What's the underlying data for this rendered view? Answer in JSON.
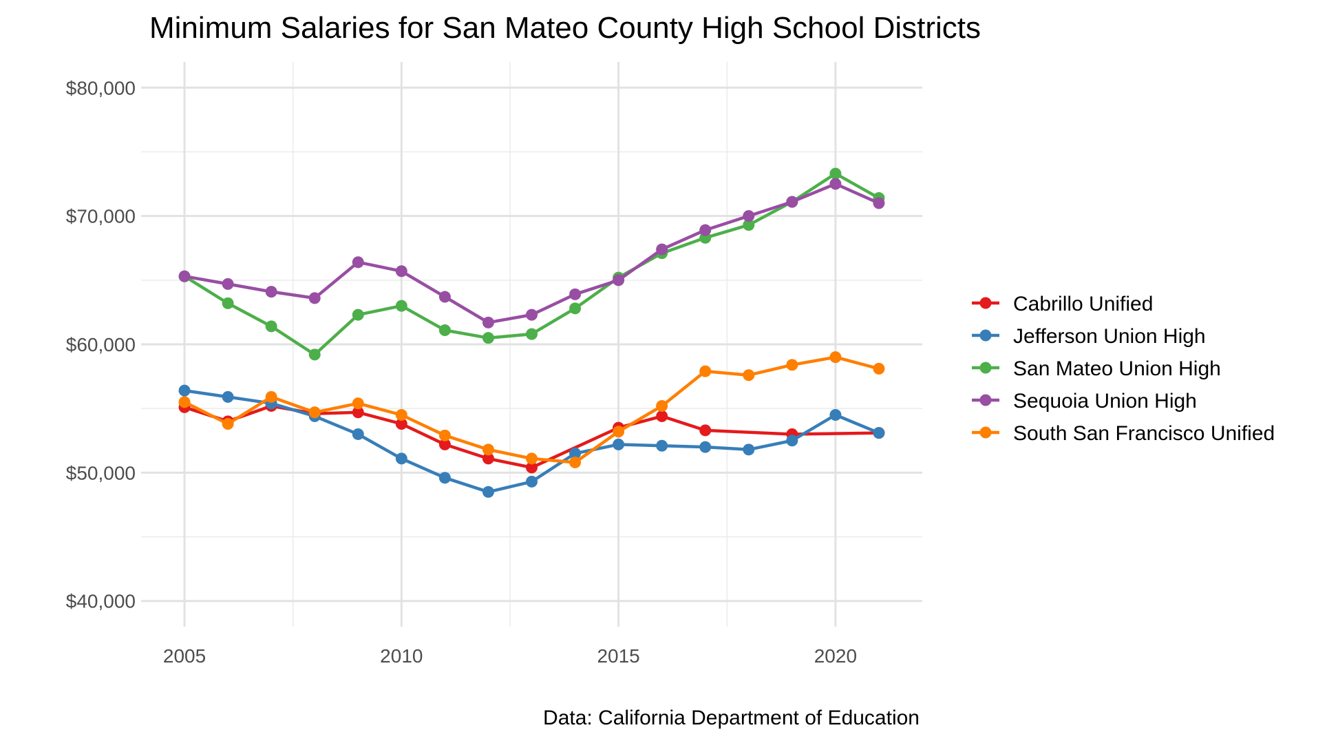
{
  "chart_data": {
    "type": "line",
    "title": "Minimum Salaries for San Mateo County High School Districts",
    "caption": "Data: California Department of Education",
    "xlabel": "",
    "ylabel": "",
    "xlim": [
      2004,
      2022
    ],
    "ylim": [
      38000,
      82000
    ],
    "x_ticks": [
      2005,
      2010,
      2015,
      2020
    ],
    "x_tick_labels": [
      "2005",
      "2010",
      "2015",
      "2020"
    ],
    "y_ticks": [
      40000,
      50000,
      60000,
      70000,
      80000
    ],
    "y_tick_labels": [
      "$40,000",
      "$50,000",
      "$60,000",
      "$70,000",
      "$80,000"
    ],
    "grid": true,
    "legend_position": "right",
    "x": [
      2005,
      2006,
      2007,
      2008,
      2009,
      2010,
      2011,
      2012,
      2013,
      2014,
      2015,
      2016,
      2017,
      2018,
      2019,
      2020,
      2021
    ],
    "series": [
      {
        "name": "Cabrillo Unified",
        "color": "#e41a1c",
        "x": [
          2005,
          2006,
          2007,
          2008,
          2009,
          2010,
          2011,
          2012,
          2013,
          2015,
          2016,
          2017,
          2019,
          2021
        ],
        "values": [
          55100,
          54000,
          55200,
          54600,
          54700,
          53800,
          52200,
          51100,
          50400,
          53500,
          54400,
          53300,
          53000,
          53100
        ]
      },
      {
        "name": "Jefferson Union High",
        "color": "#377eb8",
        "x": [
          2005,
          2006,
          2007,
          2008,
          2009,
          2010,
          2011,
          2012,
          2013,
          2014,
          2015,
          2016,
          2017,
          2018,
          2019,
          2020,
          2021
        ],
        "values": [
          56400,
          55900,
          55400,
          54400,
          53000,
          51100,
          49600,
          48500,
          49300,
          51500,
          52200,
          52100,
          52000,
          51800,
          52500,
          54500,
          53100
        ]
      },
      {
        "name": "San Mateo Union High",
        "color": "#4daf4a",
        "x": [
          2005,
          2006,
          2007,
          2008,
          2009,
          2010,
          2011,
          2012,
          2013,
          2014,
          2015,
          2016,
          2017,
          2018,
          2019,
          2020,
          2021
        ],
        "values": [
          65300,
          63200,
          61400,
          59200,
          62300,
          63000,
          61100,
          60500,
          60800,
          62800,
          65200,
          67100,
          68300,
          69300,
          71100,
          73300,
          71400
        ]
      },
      {
        "name": "Sequoia Union High",
        "color": "#984ea3",
        "x": [
          2005,
          2006,
          2007,
          2008,
          2009,
          2010,
          2011,
          2012,
          2013,
          2014,
          2015,
          2016,
          2017,
          2018,
          2019,
          2020,
          2021
        ],
        "values": [
          65300,
          64700,
          64100,
          63600,
          66400,
          65700,
          63700,
          61700,
          62300,
          63900,
          65000,
          67400,
          68900,
          70000,
          71100,
          72500,
          71000
        ]
      },
      {
        "name": "South San Francisco Unified",
        "color": "#ff7f00",
        "x": [
          2005,
          2006,
          2007,
          2008,
          2009,
          2010,
          2011,
          2012,
          2013,
          2014,
          2015,
          2016,
          2017,
          2018,
          2019,
          2020,
          2021
        ],
        "values": [
          55500,
          53800,
          55900,
          54700,
          55400,
          54500,
          52900,
          51800,
          51100,
          50800,
          53200,
          55200,
          57900,
          57600,
          58400,
          59000,
          58100
        ]
      }
    ]
  }
}
